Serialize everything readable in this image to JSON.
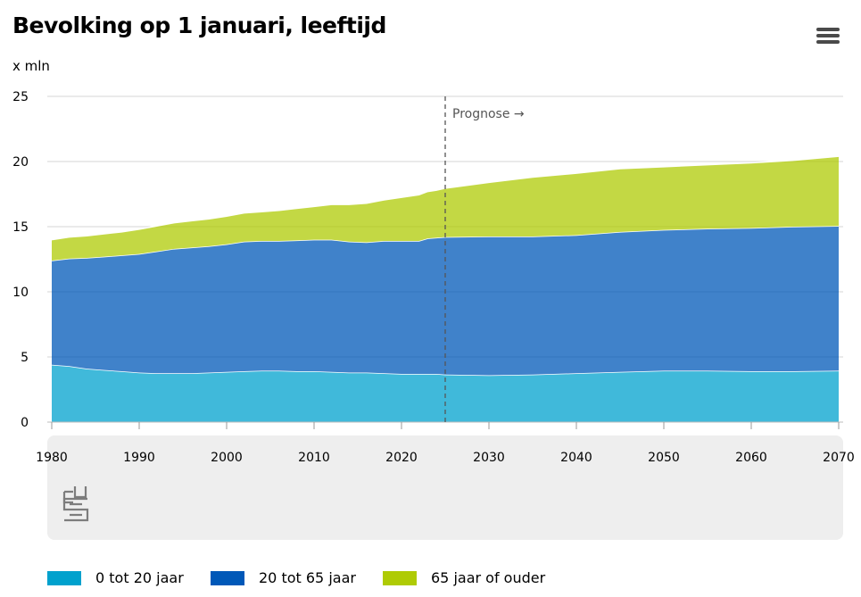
{
  "title": "Bevolking op 1 januari, leeftijd",
  "menu_icon": "hamburger-menu-icon",
  "logo_icon": "cbs-logo-icon",
  "chart_data": {
    "type": "area",
    "stacked": true,
    "title": "Bevolking op 1 januari, leeftijd",
    "ylabel": "x mln",
    "xlabel": "",
    "ylim": [
      0,
      25
    ],
    "xlim": [
      1980,
      2070
    ],
    "yticks": [
      0,
      5,
      10,
      15,
      20,
      25
    ],
    "xticks": [
      1980,
      1990,
      2000,
      2010,
      2020,
      2030,
      2040,
      2050,
      2060,
      2070
    ],
    "grid": true,
    "annotation": {
      "x": 2025,
      "label": "Prognose →"
    },
    "x": [
      1980,
      1982,
      1984,
      1986,
      1988,
      1990,
      1992,
      1994,
      1996,
      1998,
      2000,
      2002,
      2004,
      2006,
      2008,
      2010,
      2012,
      2014,
      2016,
      2018,
      2020,
      2022,
      2023,
      2024,
      2025,
      2030,
      2035,
      2040,
      2045,
      2050,
      2055,
      2060,
      2065,
      2070
    ],
    "series": [
      {
        "name": "0 tot 20 jaar",
        "color": "#00a1cd",
        "values": [
          4.4,
          4.3,
          4.1,
          4.0,
          3.9,
          3.8,
          3.75,
          3.75,
          3.75,
          3.8,
          3.85,
          3.9,
          3.95,
          3.95,
          3.9,
          3.9,
          3.85,
          3.8,
          3.8,
          3.75,
          3.7,
          3.7,
          3.7,
          3.7,
          3.65,
          3.6,
          3.65,
          3.75,
          3.85,
          3.95,
          3.95,
          3.9,
          3.9,
          3.95
        ]
      },
      {
        "name": "20 tot 65 jaar",
        "color": "#0058b8",
        "values": [
          8.0,
          8.25,
          8.5,
          8.7,
          8.9,
          9.1,
          9.35,
          9.55,
          9.65,
          9.7,
          9.8,
          9.95,
          9.95,
          9.95,
          10.05,
          10.1,
          10.15,
          10.05,
          10.0,
          10.15,
          10.2,
          10.2,
          10.4,
          10.45,
          10.55,
          10.65,
          10.6,
          10.6,
          10.75,
          10.8,
          10.9,
          11.0,
          11.1,
          11.1
        ]
      },
      {
        "name": "65 jaar of ouder",
        "color": "#afcb05",
        "values": [
          1.6,
          1.65,
          1.7,
          1.75,
          1.8,
          1.9,
          1.95,
          2.0,
          2.05,
          2.1,
          2.15,
          2.2,
          2.25,
          2.35,
          2.45,
          2.55,
          2.7,
          2.85,
          3.0,
          3.15,
          3.35,
          3.55,
          3.6,
          3.65,
          3.75,
          4.15,
          4.55,
          4.75,
          4.85,
          4.85,
          4.9,
          5.0,
          5.1,
          5.35
        ]
      }
    ]
  }
}
